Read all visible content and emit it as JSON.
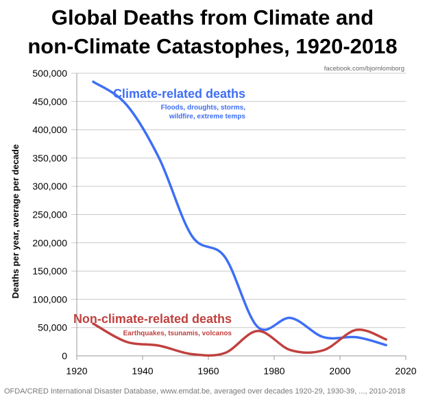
{
  "title_line1": "Global Deaths from Climate and",
  "title_line2": "non-Climate Catastophes, 1920-2018",
  "credit": "facebook.com/bjornlomborg",
  "source": "OFDA/CRED International Disaster Database, www.emdat.be, averaged over decades 1920-29, 1930-39, ..., 2010-2018",
  "chart_data": {
    "type": "line",
    "ylabel": "Deaths per year, average per decade",
    "xlim": [
      1920,
      2020
    ],
    "ylim": [
      0,
      500000
    ],
    "xticks": [
      1920,
      1940,
      1960,
      1980,
      2000,
      2020
    ],
    "yticks": [
      0,
      50000,
      100000,
      150000,
      200000,
      250000,
      300000,
      350000,
      400000,
      450000,
      500000
    ],
    "ytick_labels": [
      "0",
      "50,000",
      "100,000",
      "150,000",
      "200,000",
      "250,000",
      "300,000",
      "350,000",
      "400,000",
      "450,000",
      "500,000"
    ],
    "grid": "horizontal",
    "x": [
      1925,
      1935,
      1945,
      1955,
      1965,
      1975,
      1985,
      1995,
      2005,
      2014
    ],
    "series": [
      {
        "name": "Climate-related deaths",
        "sub1": "Floods, droughts, storms,",
        "sub2": "wildfire, extreme temps",
        "color": "#3d6ef5",
        "values": [
          485000,
          445000,
          350000,
          212000,
          175000,
          51000,
          67000,
          33000,
          33000,
          19000
        ]
      },
      {
        "name": "Non-climate-related deaths",
        "sub1": "Earthquakes, tsunamis, volcanos",
        "color": "#c0413f",
        "values": [
          57000,
          25000,
          18000,
          3000,
          5000,
          44000,
          10000,
          10000,
          46000,
          29000
        ]
      }
    ]
  }
}
